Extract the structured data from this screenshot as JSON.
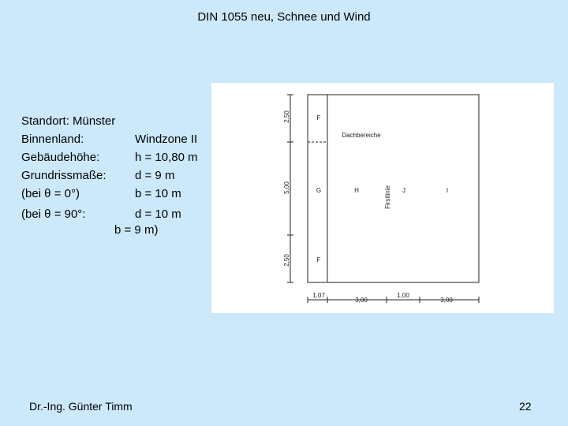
{
  "header": {
    "title": "DIN 1055 neu, Schnee und Wind"
  },
  "info": {
    "rows": [
      [
        "Standort:  Münster",
        ""
      ],
      [
        "Binnenland:",
        "Windzone II"
      ],
      [
        "Gebäudehöhe:",
        "h = 10,80 m"
      ],
      [
        "Grundrissmaße:",
        "d = 9 m"
      ],
      [
        "(bei θ = 0°)",
        "b = 10 m"
      ],
      [
        "(bei θ = 90°:",
        "d = 10 m"
      ]
    ],
    "continuation": "b = 9 m)"
  },
  "figure": {
    "dims_vertical": [
      "2,50",
      "5,00",
      "2,50"
    ],
    "dims_horizontal": [
      "1,07",
      "3,00",
      "1,00",
      "3,00"
    ],
    "zones": [
      "F",
      "G",
      "H",
      "J",
      "I",
      "F"
    ],
    "area_label": "Dachbereiche",
    "ridge_label": "Firstlinie"
  },
  "footer": {
    "author": "Dr.-Ing. Günter Timm",
    "page": "22"
  }
}
